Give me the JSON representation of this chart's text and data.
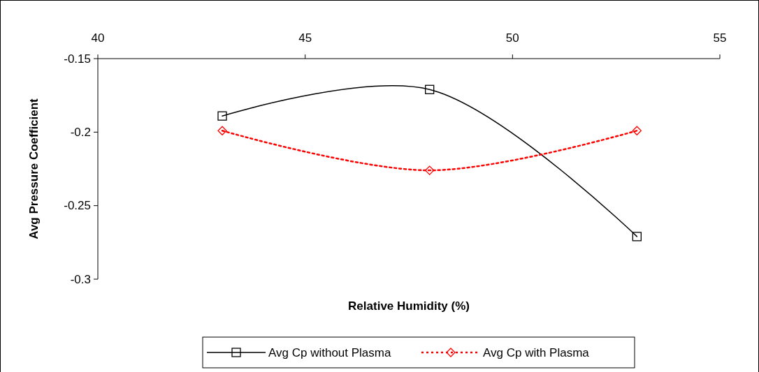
{
  "chart_data": {
    "type": "line",
    "xlabel": "Relative Humidity (%)",
    "ylabel": "Avg Pressure Coefficient",
    "xlim": [
      40,
      55
    ],
    "xticks": [
      40,
      45,
      50,
      55
    ],
    "ylim": [
      -0.3,
      -0.15
    ],
    "yticks": [
      -0.15,
      -0.2,
      -0.25,
      -0.3
    ],
    "grid": false,
    "legend": "bottom",
    "x": [
      43,
      48,
      53
    ],
    "series": [
      {
        "name": "Avg Cp without Plasma",
        "color": "#000000",
        "values": [
          -0.189,
          -0.171,
          -0.271
        ],
        "marker": "square",
        "line_style": "solid"
      },
      {
        "name": "Avg Cp with Plasma",
        "color": "#ff0000",
        "values": [
          -0.199,
          -0.226,
          -0.199
        ],
        "marker": "diamond",
        "line_style": "dotted"
      }
    ]
  }
}
